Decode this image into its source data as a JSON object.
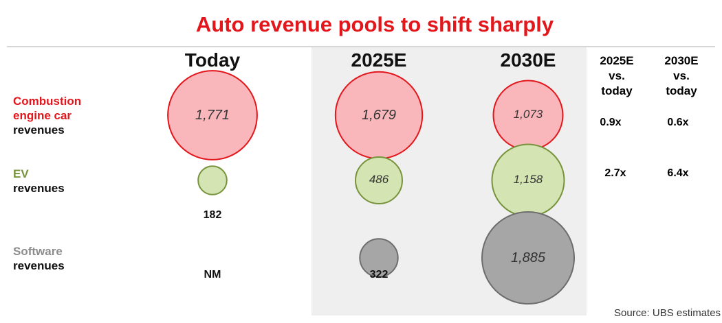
{
  "chart_data": {
    "type": "bubble",
    "title": "Auto revenue pools to shift sharply",
    "columns": [
      "Today",
      "2025E",
      "2030E"
    ],
    "rows": [
      {
        "label_lines": [
          "Combustion",
          "engine car",
          "revenues"
        ],
        "color": "#e3161b",
        "fill": "#f9b7bb",
        "values": [
          1771,
          1679,
          1073
        ],
        "display": [
          "1,771",
          "1,679",
          "1,073"
        ],
        "ratio_2025": "0.9x",
        "ratio_2030": "0.6x"
      },
      {
        "label_lines": [
          "EV",
          "revenues"
        ],
        "color": "#77933c",
        "fill": "#d4e4b2",
        "values": [
          182,
          486,
          1158
        ],
        "display": [
          "182",
          "486",
          "1,158"
        ],
        "ratio_2025": "2.7x",
        "ratio_2030": "6.4x"
      },
      {
        "label_lines": [
          "Software",
          "revenues"
        ],
        "color": "#6d6d6d",
        "fill": "#a6a6a6",
        "values": [
          null,
          322,
          1885
        ],
        "display": [
          "NM",
          "322",
          "1,885"
        ],
        "ratio_2025": "",
        "ratio_2030": ""
      }
    ],
    "ratio_headers": [
      {
        "lines": [
          "2025E",
          "vs.",
          "today"
        ],
        "color": "#1f7ab5"
      },
      {
        "lines": [
          "2030E",
          "vs.",
          "today"
        ],
        "color": "#7f7f7f"
      }
    ]
  },
  "source": "Source:  UBS estimates"
}
